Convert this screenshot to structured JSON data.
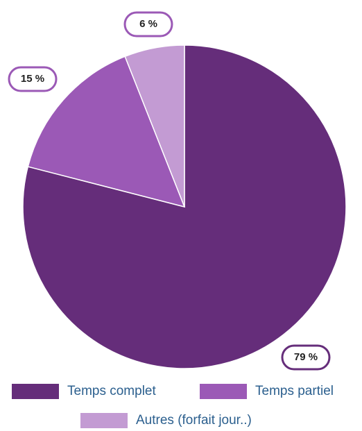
{
  "chart_data": {
    "type": "pie",
    "categories": [
      "Temps complet",
      "Temps partiel",
      "Autres (forfait jour..)"
    ],
    "values": [
      79,
      15,
      6
    ],
    "value_labels": [
      "79 %",
      "15 %",
      "6 %"
    ],
    "colors": [
      "#652d7a",
      "#9b59b6",
      "#c39bd3"
    ],
    "legend": "bottom"
  }
}
